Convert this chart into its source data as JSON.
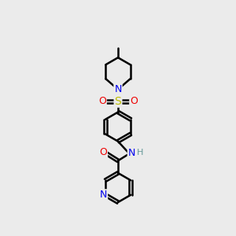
{
  "bg_color": "#ebebeb",
  "bond_color": "#000000",
  "bond_width": 1.8,
  "atom_colors": {
    "N": "#0000ee",
    "S": "#bbbb00",
    "O": "#ee0000",
    "H": "#669999",
    "C": "#000000"
  },
  "font_size": 9,
  "fig_size": [
    3.0,
    3.0
  ],
  "dpi": 100,
  "xlim": [
    0,
    10
  ],
  "ylim": [
    0,
    10
  ],
  "ring_r": 0.62,
  "pip_r": 0.6
}
